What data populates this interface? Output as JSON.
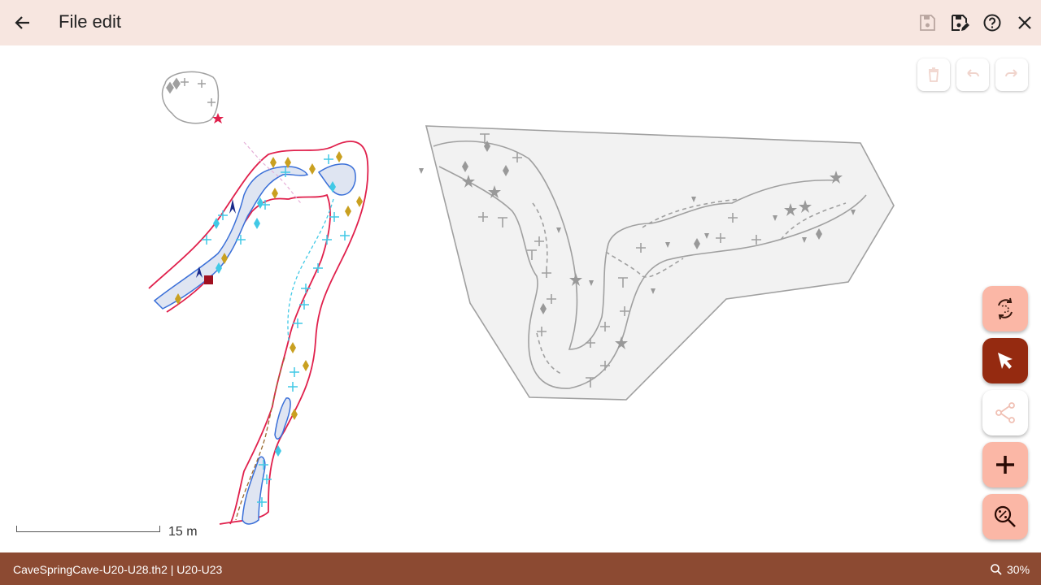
{
  "appbar": {
    "title": "File edit",
    "back_icon": "arrow-back-icon",
    "save_icon": "save-icon",
    "save_as_icon": "save-as-icon",
    "help_icon": "help-icon",
    "close_icon": "close-icon"
  },
  "toolbar": {
    "delete_icon": "delete-icon",
    "undo_icon": "undo-icon",
    "redo_icon": "redo-icon"
  },
  "fabs": [
    {
      "name": "change-scrap-button",
      "icon": "rotate-scrap-icon"
    },
    {
      "name": "select-mode-button",
      "icon": "cursor-icon",
      "selected": true
    },
    {
      "name": "node-edit-button",
      "icon": "nodes-icon"
    },
    {
      "name": "add-element-button",
      "icon": "plus-icon"
    },
    {
      "name": "zoom-options-button",
      "icon": "zoom-percent-icon"
    }
  ],
  "scale": {
    "label": "15 m"
  },
  "status": {
    "file": "CaveSpringCave-U20-U28.th2 | U20-U23",
    "zoom": "30%"
  },
  "colors": {
    "appbar_bg": "#f7e6e0",
    "statusbar_bg": "#8c4a32",
    "fab_bg": "#fbb7a6",
    "fab_selected_bg": "#952a10",
    "wall": "#e0204c",
    "water": "#3a6fd8",
    "inactive_scrap": "#a0a0a0"
  }
}
